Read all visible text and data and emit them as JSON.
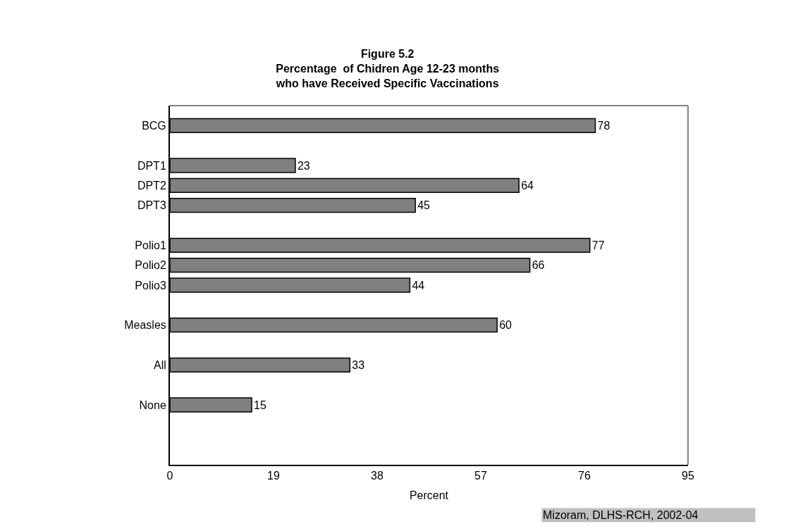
{
  "chart_data": {
    "type": "bar",
    "orientation": "horizontal",
    "title": "Figure 5.2\nPercentage  of Chidren Age 12-23 months\nwho have Received Specific Vaccinations",
    "xlabel": "Percent",
    "categories": [
      "BCG",
      null,
      "DPT1",
      "DPT2",
      "DPT3",
      null,
      "Polio1",
      "Polio2",
      "Polio3",
      null,
      "Measles",
      null,
      "All",
      null,
      "None"
    ],
    "values": [
      78,
      null,
      23,
      64,
      45,
      null,
      77,
      66,
      44,
      null,
      60,
      null,
      33,
      null,
      15
    ],
    "color": "#808080",
    "xlim": [
      0,
      95
    ],
    "xticks": [
      0,
      19,
      38,
      57,
      76,
      95
    ],
    "grid": false,
    "legend": false,
    "data_labels": true,
    "annotations": [
      "Mizoram, DLHS-RCH, 2002-04"
    ]
  }
}
